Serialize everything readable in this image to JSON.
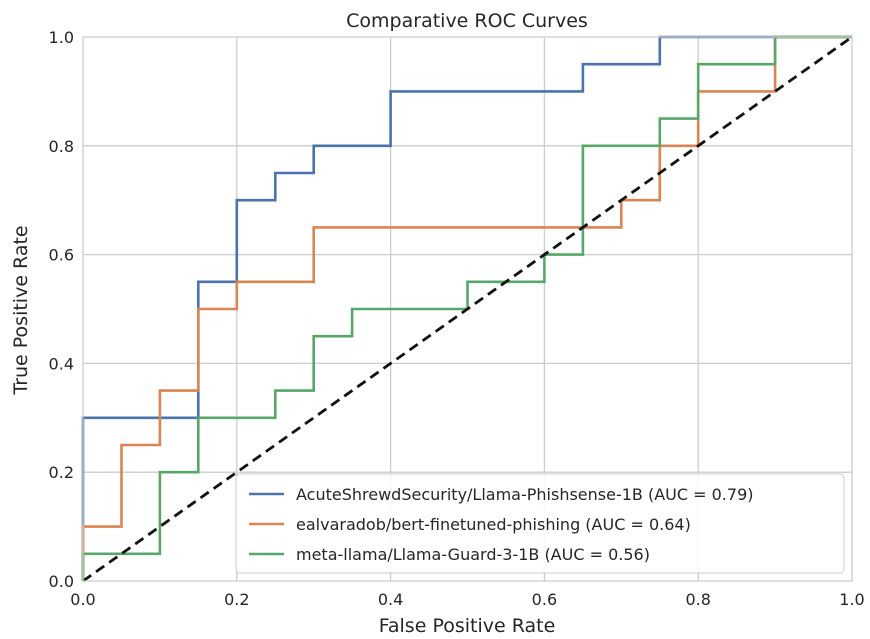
{
  "chart_data": {
    "type": "line",
    "title": "Comparative ROC Curves",
    "xlabel": "False Positive Rate",
    "ylabel": "True Positive Rate",
    "xlim": [
      0,
      1
    ],
    "ylim": [
      0,
      1
    ],
    "xticks": [
      "0.0",
      "0.2",
      "0.4",
      "0.6",
      "0.8",
      "1.0"
    ],
    "yticks": [
      "0.0",
      "0.2",
      "0.4",
      "0.6",
      "0.8",
      "1.0"
    ],
    "grid": true,
    "legend_position": "lower right",
    "series": [
      {
        "name": "AcuteShrewdSecurity/Llama-Phishsense-1B (AUC = 0.79)",
        "color": "#4c72b0",
        "points": [
          [
            0,
            0
          ],
          [
            0,
            0.3
          ],
          [
            0.15,
            0.3
          ],
          [
            0.15,
            0.55
          ],
          [
            0.2,
            0.55
          ],
          [
            0.2,
            0.7
          ],
          [
            0.25,
            0.7
          ],
          [
            0.25,
            0.75
          ],
          [
            0.3,
            0.75
          ],
          [
            0.3,
            0.8
          ],
          [
            0.4,
            0.8
          ],
          [
            0.4,
            0.9
          ],
          [
            0.65,
            0.9
          ],
          [
            0.65,
            0.95
          ],
          [
            0.75,
            0.95
          ],
          [
            0.75,
            1.0
          ],
          [
            1.0,
            1.0
          ]
        ]
      },
      {
        "name": "ealvaradob/bert-finetuned-phishing (AUC = 0.64)",
        "color": "#dd8452",
        "points": [
          [
            0,
            0
          ],
          [
            0,
            0.1
          ],
          [
            0.05,
            0.1
          ],
          [
            0.05,
            0.25
          ],
          [
            0.1,
            0.25
          ],
          [
            0.1,
            0.35
          ],
          [
            0.15,
            0.35
          ],
          [
            0.15,
            0.5
          ],
          [
            0.2,
            0.5
          ],
          [
            0.2,
            0.55
          ],
          [
            0.3,
            0.55
          ],
          [
            0.3,
            0.65
          ],
          [
            0.7,
            0.65
          ],
          [
            0.7,
            0.7
          ],
          [
            0.75,
            0.7
          ],
          [
            0.75,
            0.8
          ],
          [
            0.8,
            0.8
          ],
          [
            0.8,
            0.9
          ],
          [
            0.9,
            0.9
          ],
          [
            0.9,
            1.0
          ],
          [
            1.0,
            1.0
          ]
        ]
      },
      {
        "name": "meta-llama/Llama-Guard-3-1B (AUC = 0.56)",
        "color": "#55a868",
        "points": [
          [
            0,
            0
          ],
          [
            0,
            0.05
          ],
          [
            0.1,
            0.05
          ],
          [
            0.1,
            0.2
          ],
          [
            0.15,
            0.2
          ],
          [
            0.15,
            0.3
          ],
          [
            0.25,
            0.3
          ],
          [
            0.25,
            0.35
          ],
          [
            0.3,
            0.35
          ],
          [
            0.3,
            0.45
          ],
          [
            0.35,
            0.45
          ],
          [
            0.35,
            0.5
          ],
          [
            0.5,
            0.5
          ],
          [
            0.5,
            0.55
          ],
          [
            0.6,
            0.55
          ],
          [
            0.6,
            0.6
          ],
          [
            0.65,
            0.6
          ],
          [
            0.65,
            0.8
          ],
          [
            0.75,
            0.8
          ],
          [
            0.75,
            0.85
          ],
          [
            0.8,
            0.85
          ],
          [
            0.8,
            0.95
          ],
          [
            0.9,
            0.95
          ],
          [
            0.9,
            1.0
          ],
          [
            1.0,
            1.0
          ]
        ]
      }
    ],
    "reference_line": {
      "style": "dashed",
      "color": "#111111",
      "points": [
        [
          0,
          0
        ],
        [
          1,
          1
        ]
      ]
    }
  }
}
